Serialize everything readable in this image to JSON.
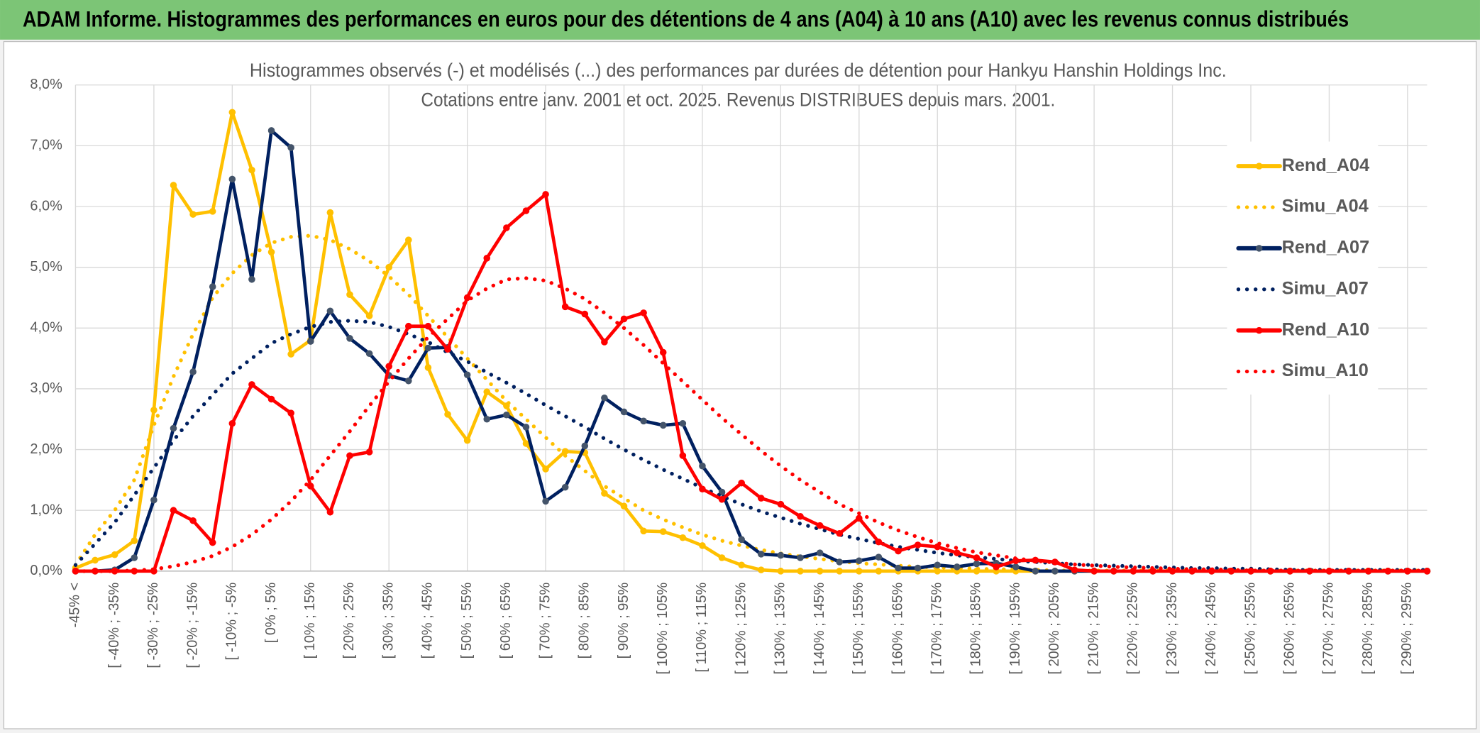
{
  "header": {
    "title": "ADAM Informe. Histogrammes des performances en euros pour des détentions de 4 ans (A04) à 10 ans (A10) avec les revenus connus distribués"
  },
  "chart_data": {
    "type": "line",
    "title": [
      "Histogrammes observés (-) et modélisés (...) des performances par durées de détention pour Hankyu Hanshin Holdings Inc.",
      "Cotations entre janv. 2001 et oct. 2025. Revenus DISTRIBUES depuis mars. 2001."
    ],
    "categories": [
      "-45% <",
      null,
      "[ -40% ; -35%",
      null,
      "[ -30% ; -25%",
      null,
      "[ -20% ; -15%",
      null,
      "[ -10% ; -5%",
      null,
      "[ 0% ; 5%",
      null,
      "[ 10% ; 15%",
      null,
      "[ 20% ; 25%",
      null,
      "[ 30% ; 35%",
      null,
      "[ 40% ; 45%",
      null,
      "[ 50% ; 55%",
      null,
      "[ 60% ; 65%",
      null,
      "[ 70% ; 75%",
      null,
      "[ 80% ; 85%",
      null,
      "[ 90% ; 95%",
      null,
      "[ 100% ; 105%",
      null,
      "[ 110% ; 115%",
      null,
      "[ 120% ; 125%",
      null,
      "[ 130% ; 135%",
      null,
      "[ 140% ; 145%",
      null,
      "[ 150% ; 155%",
      null,
      "[ 160% ; 165%",
      null,
      "[ 170% ; 175%",
      null,
      "[ 180% ; 185%",
      null,
      "[ 190% ; 195%",
      null,
      "[ 200% ; 205%",
      null,
      "[ 210% ; 215%",
      null,
      "[ 220% ; 225%",
      null,
      "[ 230% ; 235%",
      null,
      "[ 240% ; 245%",
      null,
      "[ 250% ; 255%",
      null,
      "[ 260% ; 265%",
      null,
      "[ 270% ; 275%",
      null,
      "[ 280% ; 285%",
      null,
      "[ 290% ; 295%",
      null
    ],
    "series": [
      {
        "name": "Rend_A04",
        "color": "#ffc000",
        "style": "solid",
        "markers": true,
        "marker_color": "#ffc000",
        "values": [
          0.05,
          0.18,
          0.27,
          0.5,
          2.65,
          6.35,
          5.87,
          5.92,
          7.55,
          6.6,
          5.25,
          3.57,
          3.8,
          5.9,
          4.55,
          4.2,
          5.0,
          5.45,
          3.35,
          2.58,
          2.15,
          2.95,
          2.72,
          2.1,
          1.68,
          1.97,
          1.95,
          1.28,
          1.07,
          0.66,
          0.65,
          0.55,
          0.42,
          0.22,
          0.1,
          0.02,
          0,
          0,
          0,
          0,
          0,
          0,
          0,
          0,
          0,
          0,
          0,
          0,
          0,
          0,
          0,
          0,
          0,
          0,
          0,
          0,
          0,
          0,
          0,
          0,
          0,
          0,
          0,
          0,
          0,
          0,
          0,
          0,
          0,
          0
        ]
      },
      {
        "name": "Simu_A04",
        "color": "#ffc000",
        "style": "dotted",
        "markers": false,
        "values": [
          0.1,
          0.6,
          1.0,
          1.5,
          2.4,
          3.2,
          3.9,
          4.5,
          4.9,
          5.2,
          5.4,
          5.5,
          5.52,
          5.45,
          5.3,
          5.1,
          4.85,
          4.55,
          4.2,
          3.85,
          3.5,
          3.15,
          2.8,
          2.5,
          2.2,
          1.9,
          1.65,
          1.4,
          1.2,
          1.0,
          0.85,
          0.72,
          0.6,
          0.5,
          0.42,
          0.35,
          0.29,
          0.24,
          0.2,
          0.16,
          0.13,
          0.11,
          0.09,
          0.07,
          0.06,
          0.05,
          0.04,
          0.03,
          0.03,
          0.02,
          0.01,
          0.01,
          0.01,
          0.01,
          0.01,
          0.01,
          0.01,
          0.01,
          0.01,
          0.01,
          0.01,
          0.01,
          0.01,
          0.01,
          0.01,
          0.01,
          0.01,
          0.01,
          0.01,
          0.01
        ]
      },
      {
        "name": "Rend_A07",
        "color": "#002060",
        "style": "solid",
        "markers": true,
        "marker_color": "#44546a",
        "values": [
          0,
          0,
          0.02,
          0.22,
          1.17,
          2.35,
          3.28,
          4.68,
          6.45,
          4.8,
          7.25,
          6.97,
          3.78,
          4.28,
          3.83,
          3.58,
          3.22,
          3.13,
          3.67,
          3.68,
          3.23,
          2.5,
          2.57,
          2.37,
          1.15,
          1.38,
          2.06,
          2.85,
          2.62,
          2.47,
          2.4,
          2.43,
          1.73,
          1.3,
          0.52,
          0.28,
          0.26,
          0.22,
          0.3,
          0.15,
          0.17,
          0.23,
          0.05,
          0.05,
          0.1,
          0.07,
          0.12,
          0.13,
          0.07,
          0,
          0,
          0,
          0,
          0,
          0,
          0,
          0,
          0,
          0,
          0,
          0,
          0,
          0,
          0,
          0,
          0,
          0,
          0,
          0,
          0
        ]
      },
      {
        "name": "Simu_A07",
        "color": "#002060",
        "style": "dotted",
        "markers": false,
        "values": [
          0.1,
          0.45,
          0.8,
          1.25,
          1.7,
          2.15,
          2.55,
          2.9,
          3.25,
          3.5,
          3.75,
          3.9,
          4.02,
          4.1,
          4.12,
          4.1,
          4.02,
          3.9,
          3.77,
          3.6,
          3.45,
          3.27,
          3.1,
          2.92,
          2.73,
          2.55,
          2.37,
          2.18,
          2.0,
          1.83,
          1.67,
          1.52,
          1.37,
          1.23,
          1.1,
          0.98,
          0.88,
          0.78,
          0.69,
          0.6,
          0.53,
          0.46,
          0.4,
          0.35,
          0.3,
          0.26,
          0.23,
          0.2,
          0.17,
          0.15,
          0.13,
          0.11,
          0.1,
          0.09,
          0.08,
          0.07,
          0.06,
          0.05,
          0.05,
          0.04,
          0.04,
          0.03,
          0.02,
          0.02,
          0.02,
          0.02,
          0.02,
          0.02,
          0.02,
          0.02
        ]
      },
      {
        "name": "Rend_A10",
        "color": "#ff0000",
        "style": "solid",
        "markers": true,
        "marker_color": "#ff0000",
        "values": [
          0,
          0,
          0,
          0,
          0,
          1.0,
          0.83,
          0.47,
          2.43,
          3.07,
          2.83,
          2.6,
          1.4,
          0.97,
          1.9,
          1.96,
          3.37,
          4.03,
          4.03,
          3.65,
          4.5,
          5.15,
          5.65,
          5.93,
          6.2,
          4.35,
          4.23,
          3.77,
          4.15,
          4.25,
          3.6,
          1.9,
          1.35,
          1.18,
          1.45,
          1.2,
          1.1,
          0.9,
          0.75,
          0.62,
          0.87,
          0.48,
          0.33,
          0.43,
          0.4,
          0.3,
          0.22,
          0.07,
          0.17,
          0.18,
          0.15,
          0.02,
          0,
          0,
          0,
          0,
          0,
          0,
          0,
          0,
          0,
          0,
          0,
          0,
          0,
          0,
          0,
          0,
          0,
          0
        ]
      },
      {
        "name": "Simu_A10",
        "color": "#ff0000",
        "style": "dotted",
        "markers": false,
        "values": [
          0,
          0,
          0,
          0.01,
          0.03,
          0.08,
          0.15,
          0.25,
          0.4,
          0.6,
          0.85,
          1.15,
          1.5,
          1.9,
          2.3,
          2.72,
          3.12,
          3.5,
          3.85,
          4.15,
          4.45,
          4.65,
          4.8,
          4.82,
          4.78,
          4.65,
          4.48,
          4.25,
          4.0,
          3.72,
          3.42,
          3.12,
          2.82,
          2.52,
          2.25,
          1.98,
          1.73,
          1.5,
          1.3,
          1.1,
          0.95,
          0.8,
          0.67,
          0.56,
          0.46,
          0.38,
          0.31,
          0.26,
          0.21,
          0.17,
          0.14,
          0.11,
          0.09,
          0.07,
          0.06,
          0.05,
          0.04,
          0.03,
          0.03,
          0.02,
          0.01,
          0.01,
          0.01,
          0.01,
          0.01,
          0.01,
          0.01,
          0.01,
          0.01,
          0.01
        ]
      }
    ],
    "ylim": [
      0,
      8
    ],
    "yticks": [
      {
        "value": 0,
        "label": "0,0%"
      },
      {
        "value": 1,
        "label": "1,0%"
      },
      {
        "value": 2,
        "label": "2,0%"
      },
      {
        "value": 3,
        "label": "3,0%"
      },
      {
        "value": 4,
        "label": "4,0%"
      },
      {
        "value": 5,
        "label": "5,0%"
      },
      {
        "value": 6,
        "label": "6,0%"
      },
      {
        "value": 7,
        "label": "7,0%"
      },
      {
        "value": 8,
        "label": "8,0%"
      }
    ],
    "grid": true,
    "legend": "right"
  }
}
